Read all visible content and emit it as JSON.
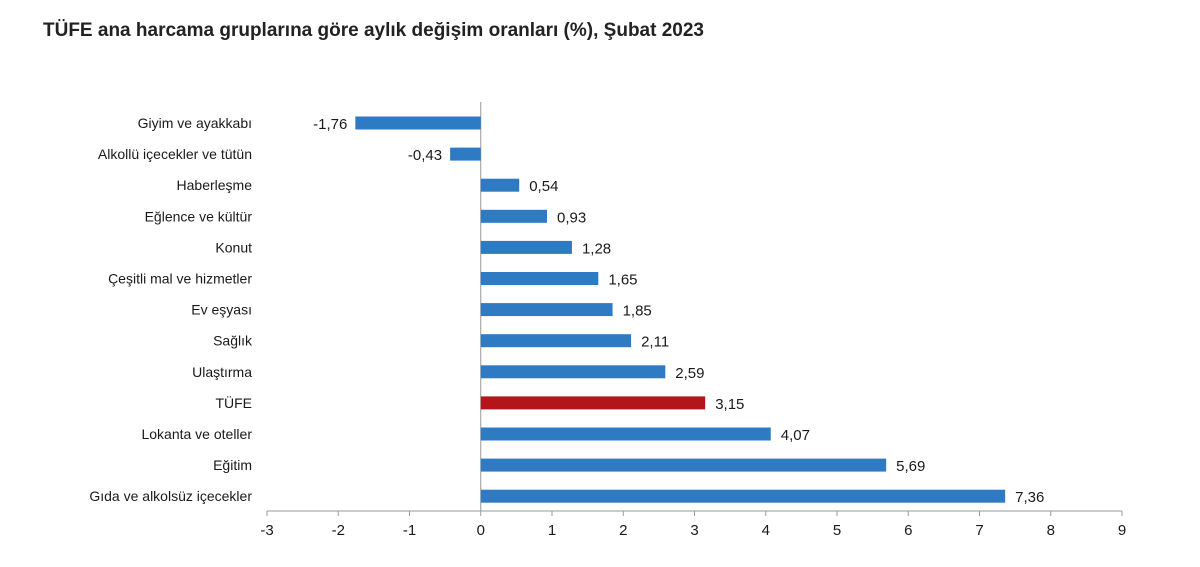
{
  "chart_data": {
    "type": "bar",
    "orientation": "horizontal",
    "title": "TÜFE ana harcama gruplarına göre aylık değişim oranları (%), Şubat 2023",
    "categories": [
      "Giyim ve ayakkabı",
      "Alkollü içecekler ve tütün",
      "Haberleşme",
      "Eğlence ve kültür",
      "Konut",
      "Çeşitli mal ve hizmetler",
      "Ev eşyası",
      "Sağlık",
      "Ulaştırma",
      "TÜFE",
      "Lokanta ve oteller",
      "Eğitim",
      "Gıda ve alkolsüz içecekler"
    ],
    "values": [
      -1.76,
      -0.43,
      0.54,
      0.93,
      1.28,
      1.65,
      1.85,
      2.11,
      2.59,
      3.15,
      4.07,
      5.69,
      7.36
    ],
    "value_labels": [
      "-1,76",
      "-0,43",
      "0,54",
      "0,93",
      "1,28",
      "1,65",
      "1,85",
      "2,11",
      "2,59",
      "3,15",
      "4,07",
      "5,69",
      "7,36"
    ],
    "highlight_category": "TÜFE",
    "colors": {
      "bar": "#2e7bc4",
      "highlight": "#b3151b",
      "axis": "#999999"
    },
    "xlim": [
      -3,
      9
    ],
    "xticks": [
      -3,
      -2,
      -1,
      0,
      1,
      2,
      3,
      4,
      5,
      6,
      7,
      8,
      9
    ],
    "xtick_labels": [
      "-3",
      "-2",
      "-1",
      "0",
      "1",
      "2",
      "3",
      "4",
      "5",
      "6",
      "7",
      "8",
      "9"
    ],
    "xlabel": "",
    "ylabel": "",
    "grid": false,
    "legend": "none"
  }
}
